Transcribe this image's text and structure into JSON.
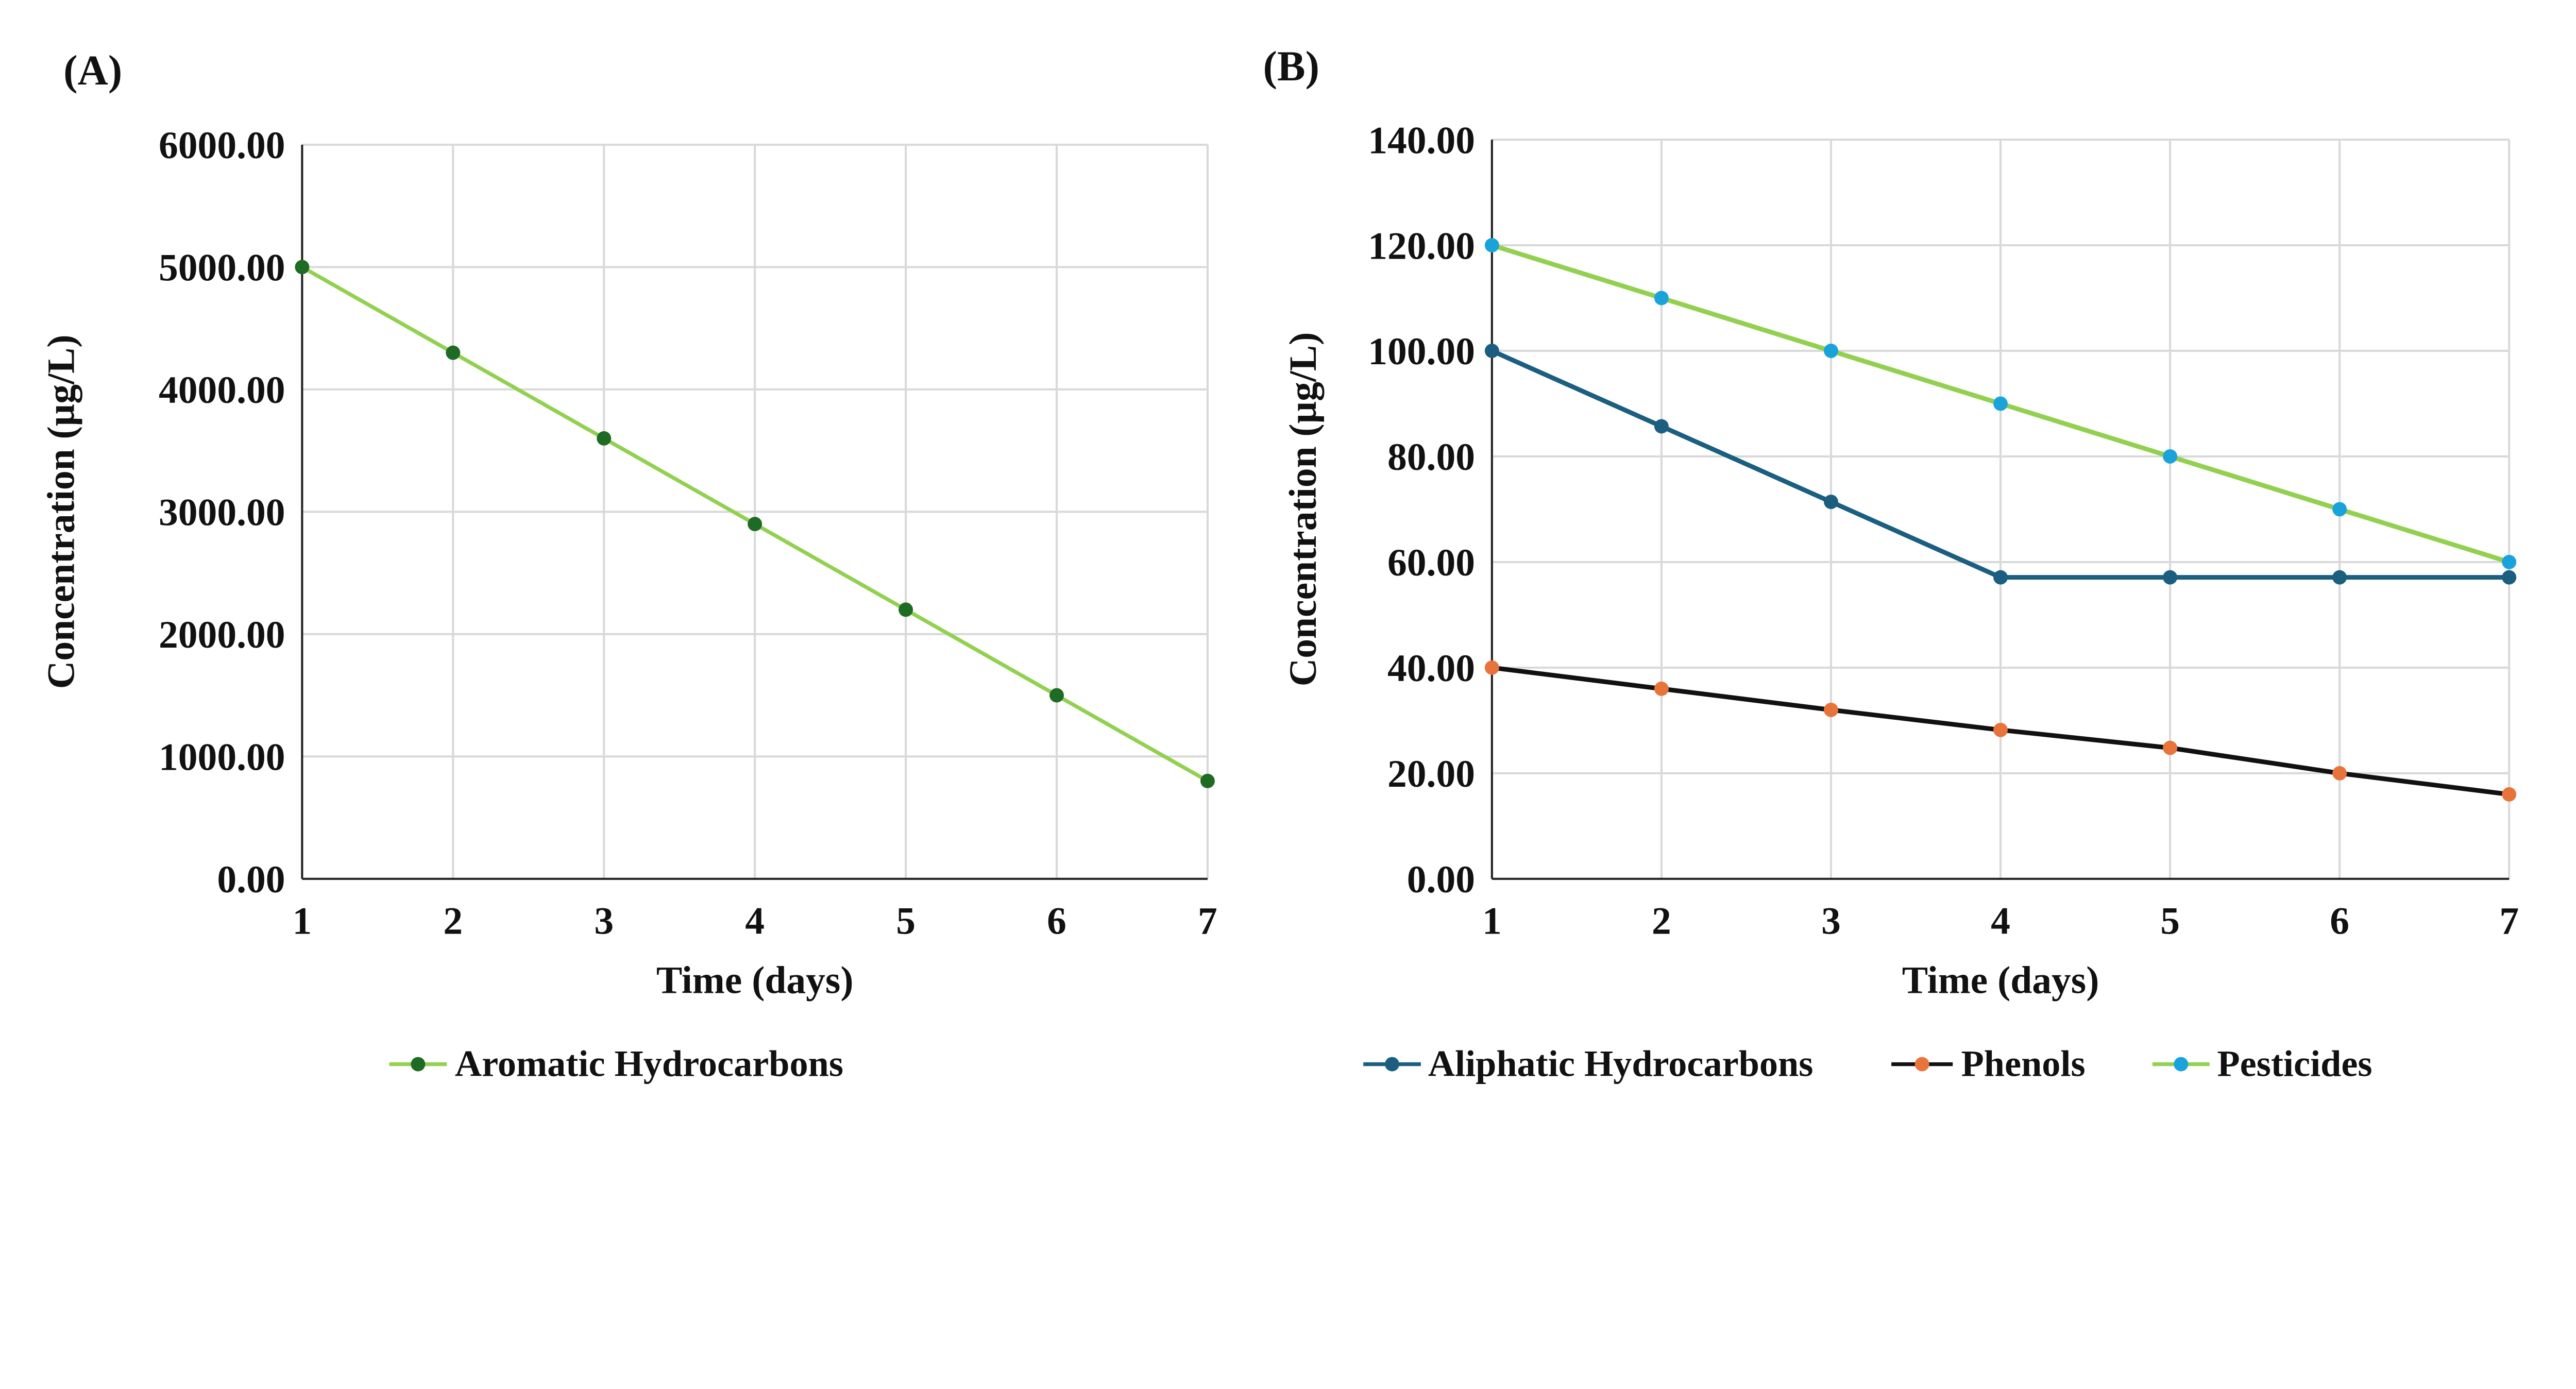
{
  "chart_data": [
    {
      "type": "line",
      "panel_label": "(A)",
      "xlabel": "Time (days)",
      "ylabel": "Concentration  (µg/L)",
      "x": [
        1,
        2,
        3,
        4,
        5,
        6,
        7
      ],
      "xticks": [
        "1",
        "2",
        "3",
        "4",
        "5",
        "6",
        "7"
      ],
      "ylim": [
        0,
        6000
      ],
      "yticks": [
        "0.00",
        "1000.00",
        "2000.00",
        "3000.00",
        "4000.00",
        "5000.00",
        "6000.00"
      ],
      "grid": true,
      "legend_position": "bottom",
      "series": [
        {
          "name": "Aromatic Hydrocarbons",
          "values": [
            5000,
            4300,
            3600,
            2900,
            2200,
            1500,
            800
          ],
          "line_color": "#92D050",
          "marker_color": "#1E6B24"
        }
      ]
    },
    {
      "type": "line",
      "panel_label": "(B)",
      "xlabel": "Time (days)",
      "ylabel": "Concentration  (µg/L)",
      "x": [
        1,
        2,
        3,
        4,
        5,
        6,
        7
      ],
      "xticks": [
        "1",
        "2",
        "3",
        "4",
        "5",
        "6",
        "7"
      ],
      "ylim": [
        0,
        140
      ],
      "yticks": [
        "0.00",
        "20.00",
        "40.00",
        "60.00",
        "80.00",
        "100.00",
        "120.00",
        "140.00"
      ],
      "grid": true,
      "legend_position": "bottom",
      "series": [
        {
          "name": "Aliphatic Hydrocarbons",
          "values": [
            100,
            85.7,
            71.4,
            57.1,
            57.1,
            57.1,
            57.1
          ],
          "line_color": "#1B5E80",
          "marker_color": "#1B5E80"
        },
        {
          "name": "Phenols",
          "values": [
            40,
            36,
            32,
            28.2,
            24.8,
            20,
            16
          ],
          "line_color": "#111111",
          "marker_color": "#E8743B"
        },
        {
          "name": "Pesticides",
          "values": [
            120,
            110,
            100,
            90,
            80,
            70,
            60
          ],
          "line_color": "#92D050",
          "marker_color": "#1AA3DA"
        }
      ]
    }
  ]
}
